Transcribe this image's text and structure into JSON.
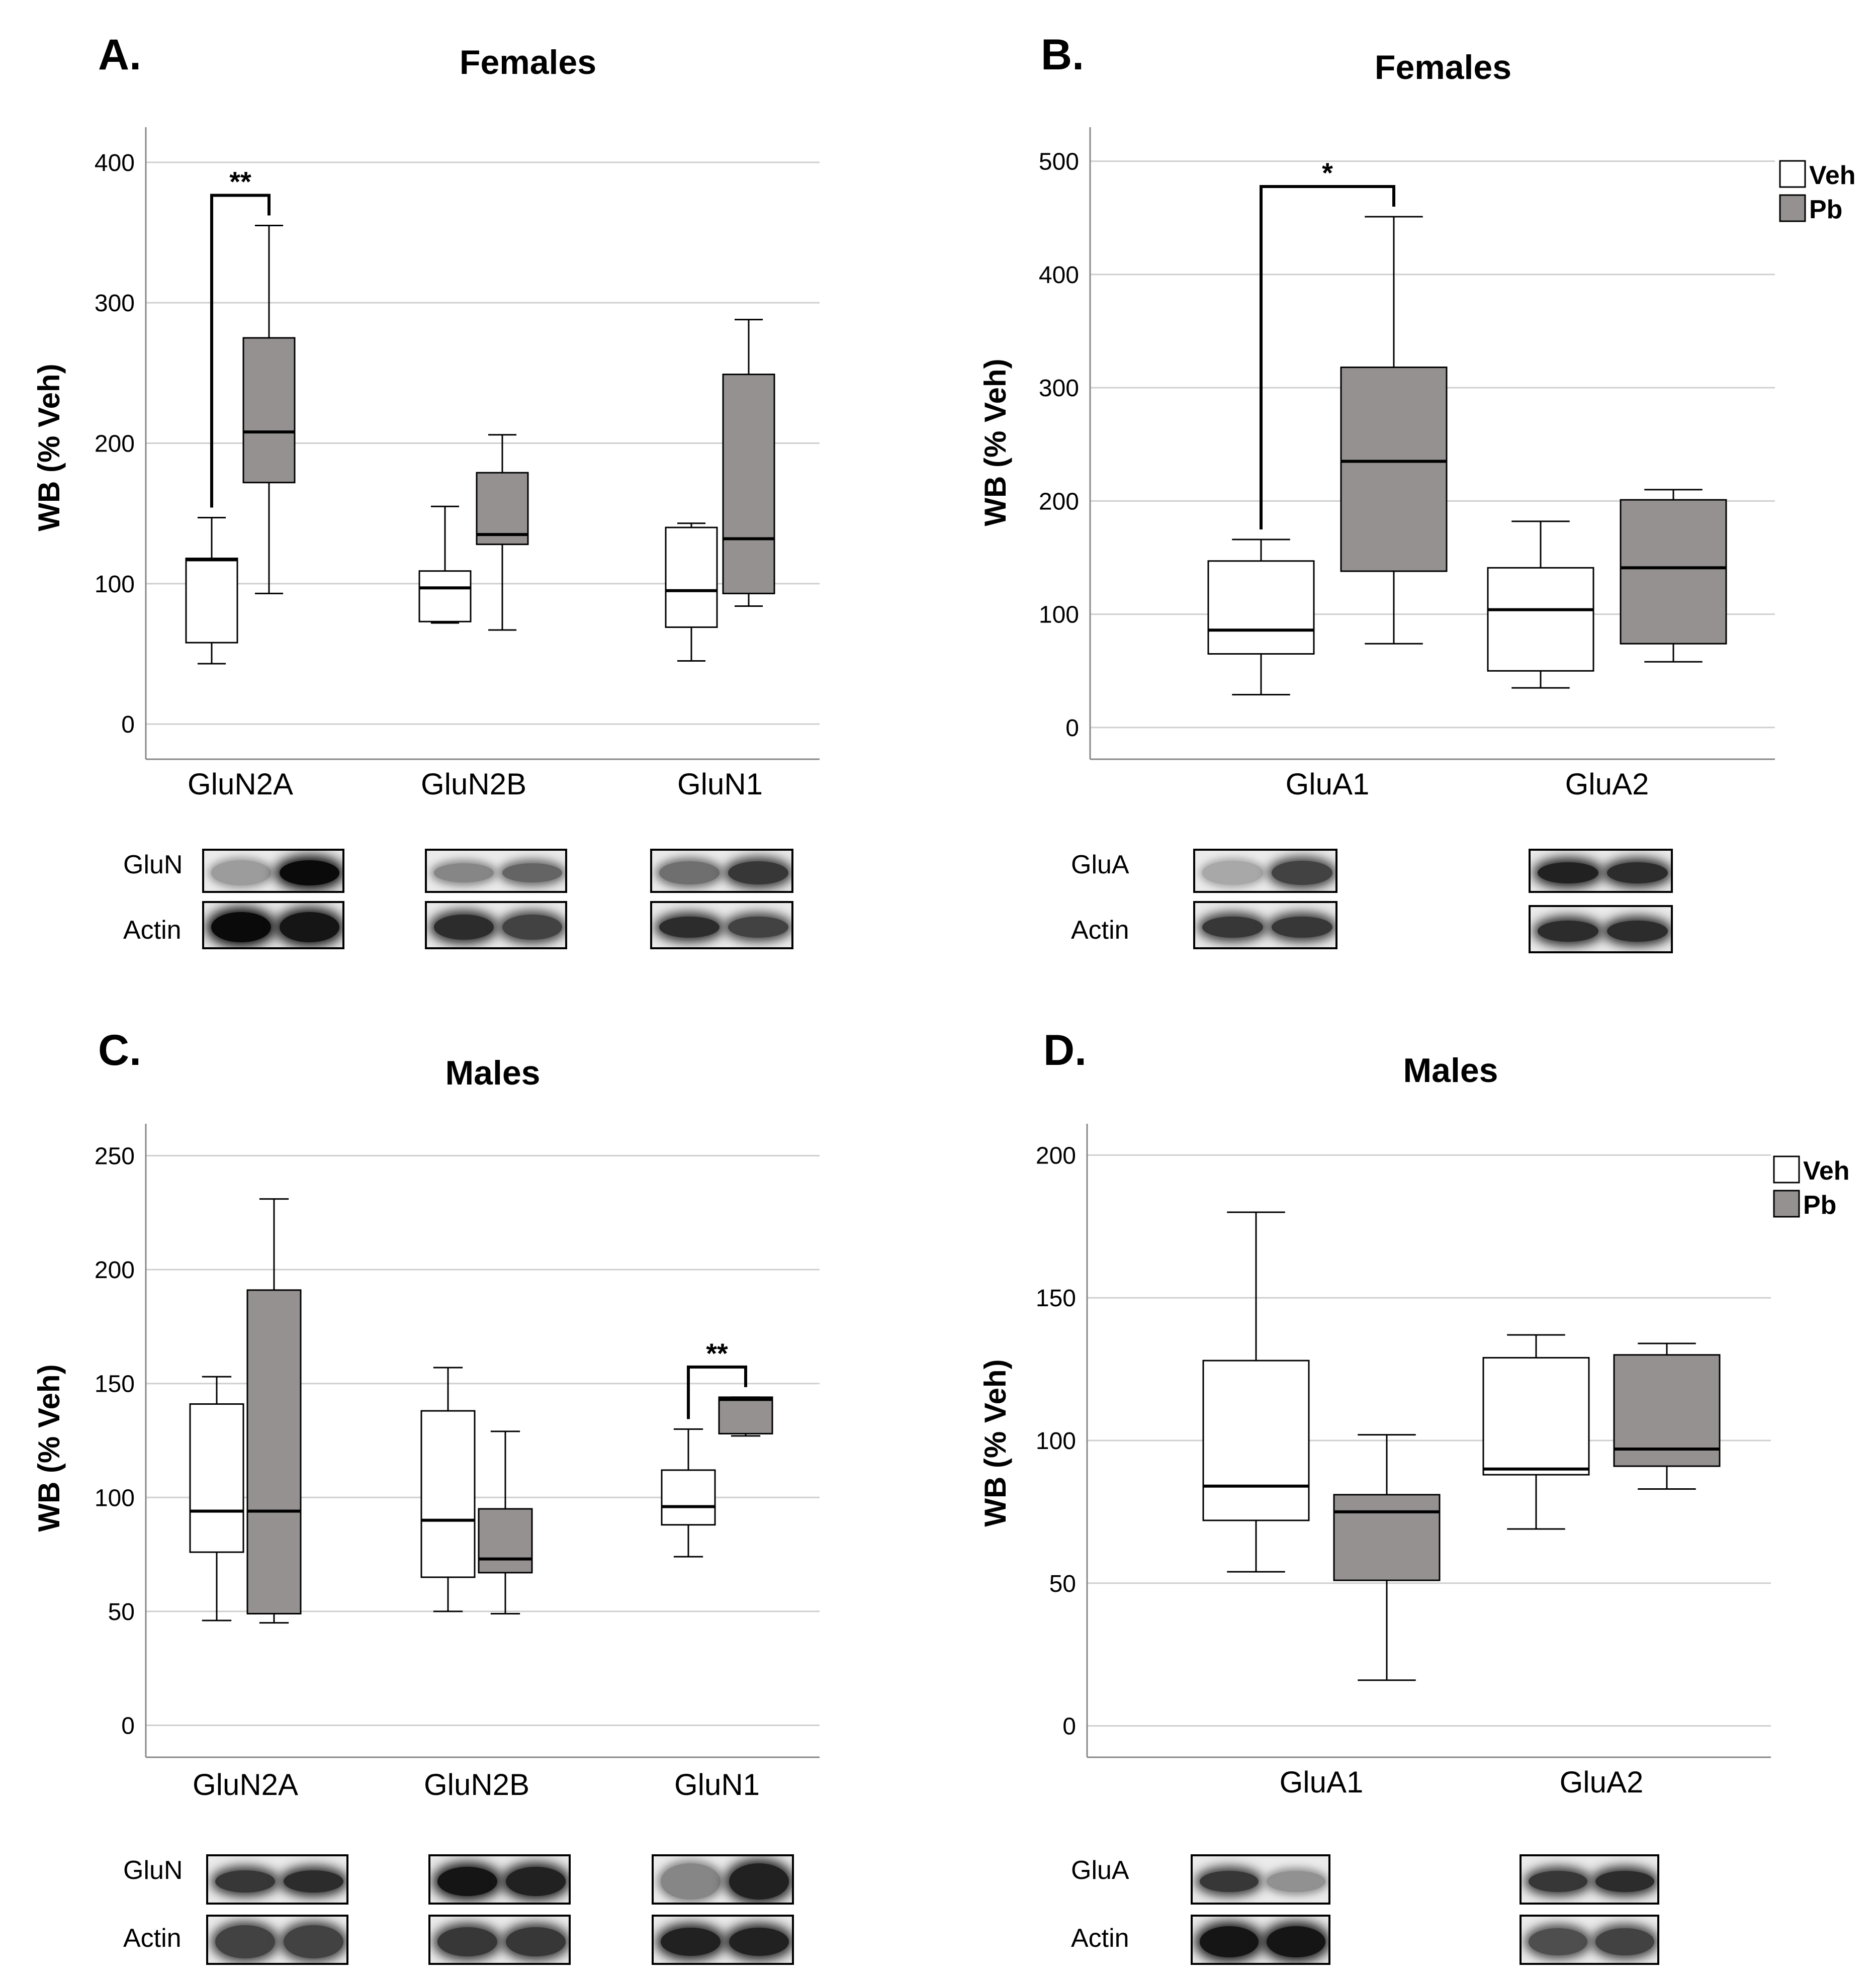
{
  "panels": [
    {
      "id": "A",
      "letter": "A.",
      "title": "Females",
      "show_legend": false,
      "blot_labels": [
        "GluN",
        "Actin"
      ],
      "chart_data": {
        "type": "boxplot",
        "ylabel": "WB (% Veh)",
        "ylim": [
          -25,
          425
        ],
        "yticks": [
          0,
          100,
          200,
          300,
          400
        ],
        "grid": true,
        "categories": [
          "GluN2A",
          "GluN2B",
          "GluN1"
        ],
        "series": [
          {
            "name": "Veh",
            "color": "#ffffff",
            "boxes": [
              {
                "min": 43,
                "q1": 58,
                "median": 117,
                "q3": 118,
                "max": 147
              },
              {
                "min": 72,
                "q1": 73,
                "median": 97,
                "q3": 109,
                "max": 155
              },
              {
                "min": 45,
                "q1": 69,
                "median": 95,
                "q3": 140,
                "max": 143
              }
            ]
          },
          {
            "name": "Pb",
            "color": "#959191",
            "boxes": [
              {
                "min": 93,
                "q1": 172,
                "median": 208,
                "q3": 275,
                "max": 355
              },
              {
                "min": 67,
                "q1": 128,
                "median": 135,
                "q3": 179,
                "max": 206
              },
              {
                "min": 84,
                "q1": 93,
                "median": 132,
                "q3": 249,
                "max": 288
              }
            ]
          }
        ],
        "significance": [
          {
            "category_index": 0,
            "label": "**",
            "from": "Veh",
            "to": "Pb"
          }
        ]
      }
    },
    {
      "id": "B",
      "letter": "B.",
      "title": "Females",
      "show_legend": true,
      "blot_labels": [
        "GluA",
        "Actin"
      ],
      "chart_data": {
        "type": "boxplot",
        "ylabel": "WB (% Veh)",
        "ylim": [
          -28,
          530
        ],
        "yticks": [
          0,
          100,
          200,
          300,
          400,
          500
        ],
        "grid": true,
        "categories": [
          "GluA1",
          "GluA2"
        ],
        "series": [
          {
            "name": "Veh",
            "color": "#ffffff",
            "boxes": [
              {
                "min": 29,
                "q1": 65,
                "median": 86,
                "q3": 147,
                "max": 166
              },
              {
                "min": 35,
                "q1": 50,
                "median": 104,
                "q3": 141,
                "max": 182
              }
            ]
          },
          {
            "name": "Pb",
            "color": "#959191",
            "boxes": [
              {
                "min": 74,
                "q1": 138,
                "median": 235,
                "q3": 318,
                "max": 451
              },
              {
                "min": 58,
                "q1": 74,
                "median": 141,
                "q3": 201,
                "max": 210
              }
            ]
          }
        ],
        "significance": [
          {
            "category_index": 0,
            "label": "*",
            "from": "Veh",
            "to": "Pb"
          }
        ],
        "legend": {
          "position": "top-right",
          "entries": [
            "Veh",
            "Pb"
          ]
        }
      }
    },
    {
      "id": "C",
      "letter": "C.",
      "title": "Males",
      "show_legend": false,
      "blot_labels": [
        "GluN",
        "Actin"
      ],
      "chart_data": {
        "type": "boxplot",
        "ylabel": "WB (% Veh)",
        "ylim": [
          -14,
          264
        ],
        "yticks": [
          0,
          50,
          100,
          150,
          200,
          250
        ],
        "grid": true,
        "categories": [
          "GluN2A",
          "GluN2B",
          "GluN1"
        ],
        "series": [
          {
            "name": "Veh",
            "color": "#ffffff",
            "boxes": [
              {
                "min": 46,
                "q1": 76,
                "median": 94,
                "q3": 141,
                "max": 153
              },
              {
                "min": 50,
                "q1": 65,
                "median": 90,
                "q3": 138,
                "max": 157
              },
              {
                "min": 74,
                "q1": 88,
                "median": 96,
                "q3": 112,
                "max": 130
              }
            ]
          },
          {
            "name": "Pb",
            "color": "#959191",
            "boxes": [
              {
                "min": 45,
                "q1": 49,
                "median": 94,
                "q3": 191,
                "max": 231
              },
              {
                "min": 49,
                "q1": 67,
                "median": 73,
                "q3": 95,
                "max": 129
              },
              {
                "min": 127,
                "q1": 128,
                "median": 143,
                "q3": 144,
                "max": 144
              }
            ]
          }
        ],
        "significance": [
          {
            "category_index": 2,
            "label": "**",
            "from": "Veh",
            "to": "Pb"
          }
        ]
      }
    },
    {
      "id": "D",
      "letter": "D.",
      "title": "Males",
      "show_legend": true,
      "blot_labels": [
        "GluA",
        "Actin"
      ],
      "chart_data": {
        "type": "boxplot",
        "ylabel": "WB (% Veh)",
        "ylim": [
          -11,
          211
        ],
        "yticks": [
          0,
          50,
          100,
          150,
          200
        ],
        "grid": true,
        "categories": [
          "GluA1",
          "GluA2"
        ],
        "series": [
          {
            "name": "Veh",
            "color": "#ffffff",
            "boxes": [
              {
                "min": 54,
                "q1": 72,
                "median": 84,
                "q3": 128,
                "max": 180
              },
              {
                "min": 69,
                "q1": 88,
                "median": 90,
                "q3": 129,
                "max": 137
              }
            ]
          },
          {
            "name": "Pb",
            "color": "#959191",
            "boxes": [
              {
                "min": 16,
                "q1": 51,
                "median": 75,
                "q3": 81,
                "max": 102
              },
              {
                "min": 83,
                "q1": 91,
                "median": 97,
                "q3": 130,
                "max": 134
              }
            ]
          }
        ],
        "significance": [],
        "legend": {
          "position": "top-right",
          "entries": [
            "Veh",
            "Pb"
          ]
        }
      }
    }
  ]
}
